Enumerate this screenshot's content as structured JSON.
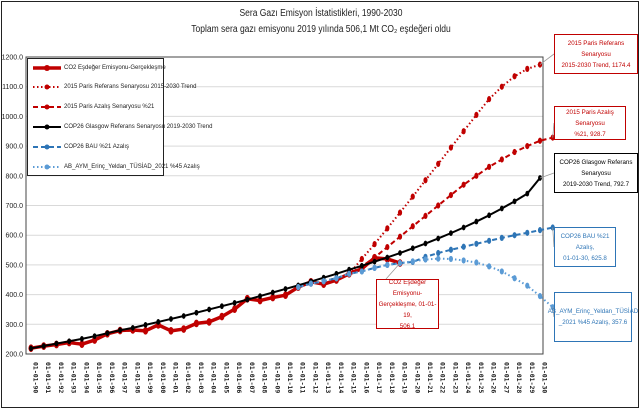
{
  "chart_data": {
    "type": "line",
    "title": "Sera Gazı Emisyon İstatistikleri, 1990-2030",
    "subtitle": "Toplam sera gazı emisyonu 2019 yılında 506,1 Mt CO₂ eşdeğeri oldu",
    "xlabel": "",
    "ylabel": "",
    "ylim": [
      200,
      1200
    ],
    "yticks": [
      "200.0",
      "300.0",
      "400.0",
      "500.0",
      "600.0",
      "700.0",
      "800.0",
      "900.0",
      "1000.0",
      "1100.0",
      "1200.0"
    ],
    "grid": true,
    "legend_position": "top-left",
    "x": [
      "01-01-90",
      "01-01-91",
      "01-01-92",
      "01-01-93",
      "01-01-94",
      "01-01-95",
      "01-01-96",
      "01-01-97",
      "01-01-98",
      "01-01-99",
      "01-01-00",
      "01-01-01",
      "01-01-02",
      "01-01-03",
      "01-01-04",
      "01-01-05",
      "01-01-06",
      "01-01-07",
      "01-01-08",
      "01-01-09",
      "01-01-10",
      "01-01-11",
      "01-01-12",
      "01-01-13",
      "01-01-14",
      "01-01-15",
      "01-01-16",
      "01-01-17",
      "01-01-18",
      "01-01-19",
      "01-01-20",
      "01-01-21",
      "01-01-22",
      "01-01-23",
      "01-01-24",
      "01-01-25",
      "01-01-26",
      "01-01-27",
      "01-01-28",
      "01-01-29",
      "01-01-30"
    ],
    "series": [
      {
        "name": "CO2 Eşdeğer Emisyonu-Gerçekleşme",
        "color": "#c00000",
        "style": "solid-thick",
        "start_index": 0,
        "values": [
          219.6,
          226.5,
          232.0,
          238.5,
          233.0,
          247.0,
          268.0,
          279.0,
          281.0,
          278.0,
          298.0,
          278.0,
          284.0,
          303.0,
          308.0,
          326.0,
          351.0,
          386.0,
          380.0,
          390.0,
          398.0,
          425.0,
          443.0,
          435.0,
          449.0,
          470.0,
          487.0,
          524.0,
          520.0,
          506.1
        ]
      },
      {
        "name": "2015 Paris Referans Senaryosu 2015-2030 Trend",
        "color": "#c00000",
        "style": "dotted",
        "start_index": 25,
        "values": [
          470.0,
          520.0,
          570.0,
          623.0,
          676.0,
          730.0,
          785.0,
          840.0,
          895.0,
          950.0,
          1005.0,
          1058.0,
          1100.0,
          1135.0,
          1160.0,
          1174.4
        ]
      },
      {
        "name": "2015 Paris Azalış Senaryosu %21",
        "color": "#c00000",
        "style": "dashed",
        "start_index": 21,
        "values": [
          425.0,
          437.0,
          445.0,
          455.0,
          470.0,
          495.0,
          525.0,
          560.0,
          595.0,
          630.0,
          665.0,
          700.0,
          735.0,
          770.0,
          800.0,
          830.0,
          855.0,
          880.0,
          900.0,
          918.0,
          928.7
        ]
      },
      {
        "name": "COP26 Glasgow Referans Senaryosu 2019-2030 Trend",
        "color": "#000000",
        "style": "solid",
        "start_index": 0,
        "values": [
          219.0,
          227.0,
          235.0,
          243.0,
          251.0,
          260.0,
          270.0,
          280.0,
          288.0,
          298.0,
          308.0,
          318.0,
          328.0,
          339.0,
          350.0,
          361.0,
          372.0,
          383.0,
          395.0,
          407.0,
          419.0,
          431.0,
          444.0,
          457.0,
          470.0,
          484.0,
          497.0,
          511.0,
          525.0,
          540.0,
          556.0,
          572.0,
          589.0,
          607.0,
          626.0,
          646.0,
          667.0,
          690.0,
          714.0,
          740.0,
          792.7
        ]
      },
      {
        "name": "COP26 BAU %21 Azalış",
        "color": "#2e75b6",
        "style": "dashed",
        "start_index": 21,
        "values": [
          425.0,
          437.0,
          445.0,
          455.0,
          470.0,
          478.0,
          490.0,
          500.0,
          506.0,
          510.0,
          527.0,
          540.0,
          551.0,
          561.0,
          571.0,
          581.0,
          591.0,
          600.0,
          608.0,
          617.0,
          625.8
        ]
      },
      {
        "name": "AB_AYM_Erinç_Yeldan_TÜSİAD_2021 %45 Azalış",
        "color": "#5b9bd5",
        "style": "dotted",
        "start_index": 21,
        "values": [
          425.0,
          437.0,
          445.0,
          455.0,
          470.0,
          478.0,
          490.0,
          500.0,
          506.0,
          512.0,
          518.0,
          521.0,
          520.0,
          515.0,
          508.0,
          495.0,
          478.0,
          455.0,
          430.0,
          395.0,
          357.6
        ]
      }
    ],
    "annotations": [
      {
        "text_lines": [
          "2015 Paris Referans Senaryosu",
          "2015-2030 Trend, 1174.4"
        ],
        "series": 1,
        "color": "#c00000"
      },
      {
        "text_lines": [
          "2015 Paris Azalış Senaryosu",
          "%21, 928.7"
        ],
        "series": 2,
        "color": "#c00000"
      },
      {
        "text_lines": [
          "COP26 Glasgow Referans Senaryosu",
          "2019-2030 Trend, 792.7"
        ],
        "series": 3,
        "color": "#000000"
      },
      {
        "text_lines": [
          "COP26 BAU %21 Azalış,",
          "01-01-30, 625.8"
        ],
        "series": 4,
        "color": "#2e75b6"
      },
      {
        "text_lines": [
          "AB_AYM_Erinç_Yeldan_TÜSİAD",
          "_2021 %45 Azalış, 357.6"
        ],
        "series": 5,
        "color": "#2e75b6"
      },
      {
        "text_lines": [
          "CO2 Eşdeğer Emisyonu-",
          "Gerçekleşme, 01-01-19,",
          "506.1"
        ],
        "series": 0,
        "color": "#c00000"
      }
    ]
  }
}
